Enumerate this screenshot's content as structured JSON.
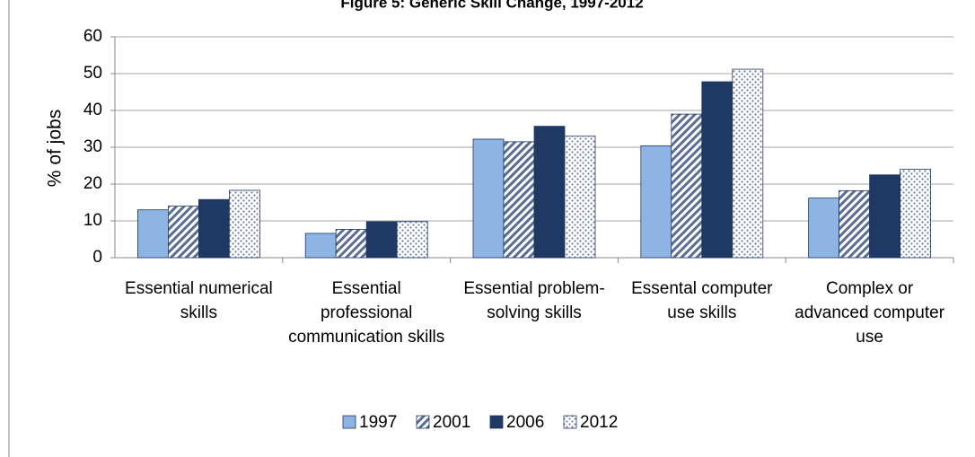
{
  "chart_data": {
    "type": "bar",
    "title": "Figure 5: Generic Skill Change, 1997-2012",
    "y_label": "% of jobs",
    "categories": [
      "Essential numerical skills",
      "Essential professional communication skills",
      "Essential problem-solving skills",
      "Essental computer use skills",
      "Complex or advanced computer use"
    ],
    "series": [
      {
        "name": "1997",
        "color": "#8eb4e3",
        "pattern": "solid",
        "values": [
          13,
          6.6,
          32.2,
          30.4,
          16.2
        ]
      },
      {
        "name": "2001",
        "color": "#1f3864",
        "pattern": "diagonal",
        "values": [
          14,
          7.7,
          31.5,
          39,
          18.2
        ]
      },
      {
        "name": "2006",
        "color": "#1f3864",
        "pattern": "solid",
        "values": [
          15.8,
          9.8,
          35.7,
          47.8,
          22.5
        ]
      },
      {
        "name": "2012",
        "color": "#1f3864",
        "pattern": "dots",
        "values": [
          18.3,
          9.8,
          33,
          51.2,
          24
        ]
      }
    ],
    "ylim": [
      0,
      60
    ],
    "yticks": [
      0,
      10,
      20,
      30,
      40,
      50,
      60
    ],
    "grid": true,
    "legend": "bottom"
  }
}
